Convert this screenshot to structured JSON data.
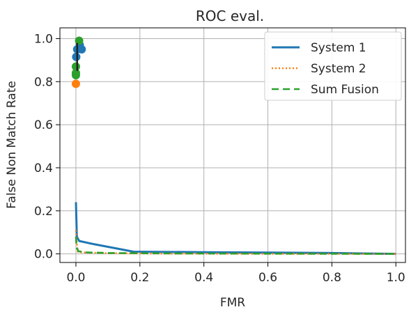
{
  "chart_data": {
    "type": "line",
    "title": "ROC eval.",
    "xlabel": "FMR",
    "ylabel": "False Non Match Rate",
    "xlim": [
      -0.05,
      1.03
    ],
    "ylim": [
      -0.04,
      1.05
    ],
    "xticks": [
      0.0,
      0.2,
      0.4,
      0.6,
      0.8,
      1.0
    ],
    "xtick_labels": [
      "0.0",
      "0.2",
      "0.4",
      "0.6",
      "0.8",
      "1.0"
    ],
    "yticks": [
      0.0,
      0.2,
      0.4,
      0.6,
      0.8,
      1.0
    ],
    "ytick_labels": [
      "0.0",
      "0.2",
      "0.4",
      "0.6",
      "0.8",
      "1.0"
    ],
    "grid": true,
    "legend_position": "top-right",
    "series": [
      {
        "name": "System 1",
        "color": "#1f77b4",
        "style": "solid",
        "x": [
          0.0,
          0.003,
          0.01,
          0.05,
          0.18,
          0.4,
          0.6,
          0.8,
          1.0
        ],
        "y": [
          0.24,
          0.08,
          0.06,
          0.047,
          0.01,
          0.008,
          0.006,
          0.004,
          0.0
        ],
        "markers_x": [
          0.001,
          0.004,
          0.012,
          0.018
        ],
        "markers_y": [
          0.915,
          0.95,
          0.97,
          0.95
        ]
      },
      {
        "name": "System 2",
        "color": "#ff7f0e",
        "style": "dotted",
        "x": [
          0.0,
          0.002,
          0.006,
          0.02,
          0.1,
          0.3,
          0.6,
          1.0
        ],
        "y": [
          0.11,
          0.06,
          0.01,
          0.007,
          0.003,
          0.001,
          0.0005,
          0.0
        ],
        "markers_x": [
          0.0
        ],
        "markers_y": [
          0.79
        ]
      },
      {
        "name": "Sum Fusion",
        "color": "#2ca02c",
        "style": "dashed",
        "x": [
          0.0,
          0.002,
          0.008,
          0.03,
          0.1,
          0.3,
          0.6,
          1.0
        ],
        "y": [
          0.08,
          0.03,
          0.012,
          0.007,
          0.004,
          0.002,
          0.001,
          0.0
        ],
        "markers_x": [
          0.0,
          0.0,
          0.0,
          0.01
        ],
        "markers_y": [
          0.84,
          0.87,
          0.83,
          0.99
        ]
      }
    ]
  }
}
